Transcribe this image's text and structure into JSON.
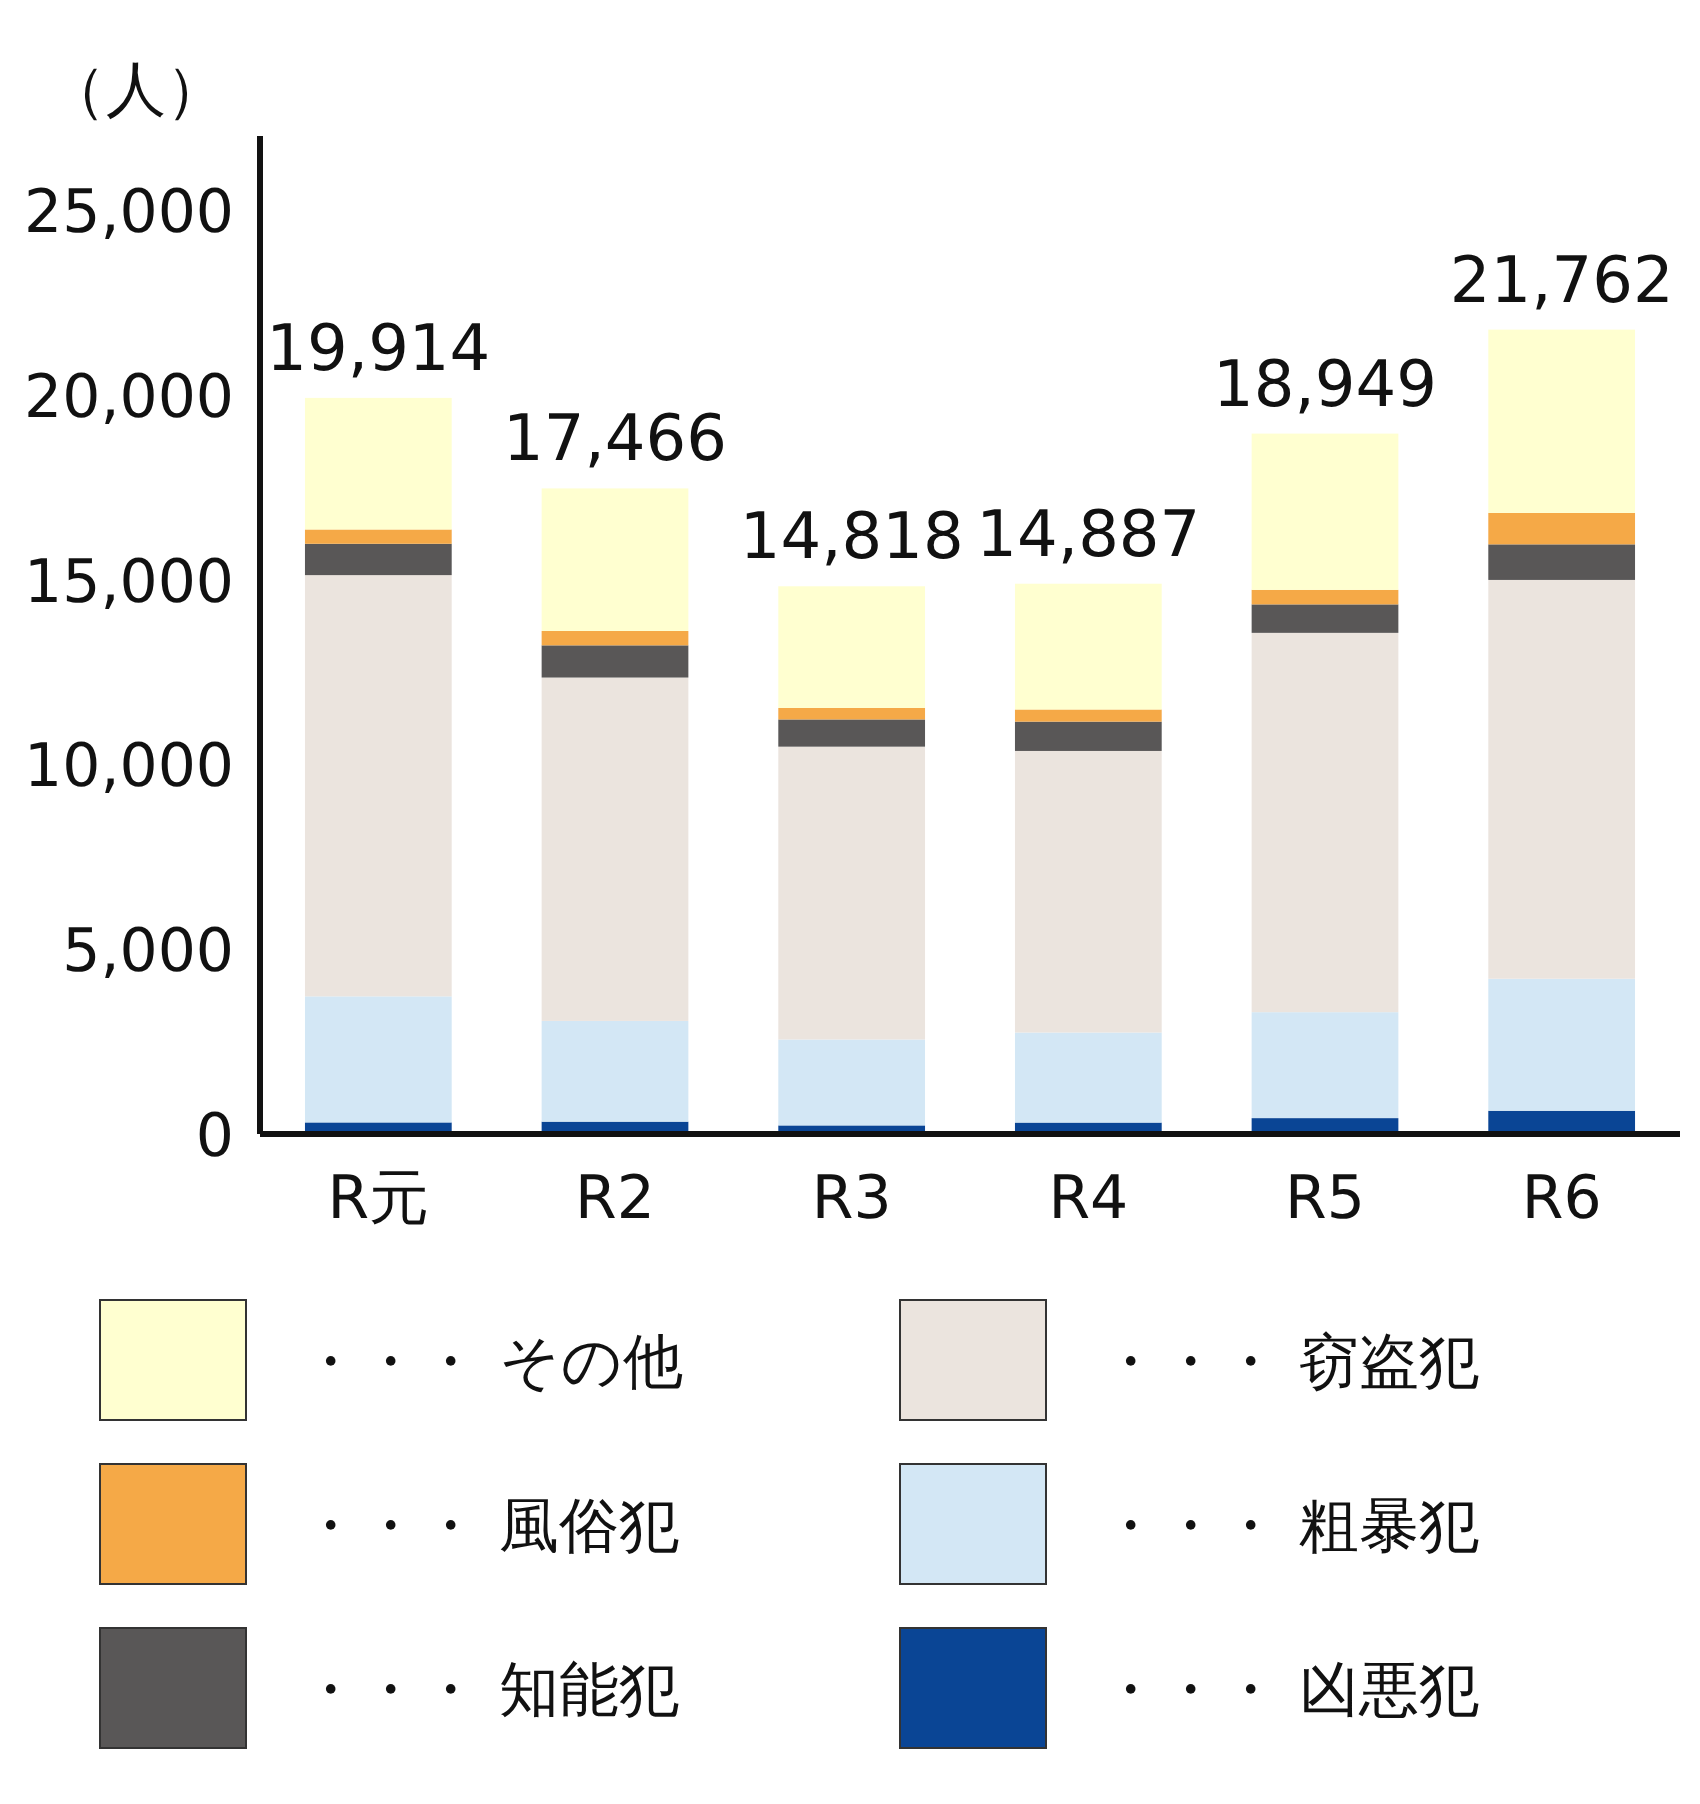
{
  "chart_data": {
    "type": "bar",
    "stacked": true,
    "ylabel": "（人）",
    "categories": [
      "R元",
      "R2",
      "R3",
      "R4",
      "R5",
      "R6"
    ],
    "series": [
      {
        "name": "・・・ 凶悪犯",
        "color": "#0a4595",
        "values": [
          313,
          334,
          232,
          309,
          430,
          629
        ]
      },
      {
        "name": "・・・ 粗暴犯",
        "color": "#d3e7f5",
        "values": [
          3411,
          2726,
          2324,
          2436,
          2866,
          3571
        ]
      },
      {
        "name": "・・・ 窃盗犯",
        "color": "#ebe4de",
        "values": [
          11396,
          9289,
          7923,
          7618,
          10262,
          10790
        ]
      },
      {
        "name": "・・・ 知能犯",
        "color": "#595757",
        "values": [
          848,
          871,
          736,
          793,
          770,
          962
        ]
      },
      {
        "name": "・・・ 風俗犯",
        "color": "#f5a947",
        "values": [
          387,
          389,
          310,
          329,
          394,
          851
        ]
      },
      {
        "name": "・・・ その他",
        "color": "#ffffd0",
        "values": [
          3559,
          3857,
          3293,
          3402,
          4227,
          4959
        ]
      }
    ],
    "totals": [
      "19,914",
      "17,466",
      "14,818",
      "14,887",
      "18,949",
      "21,762"
    ],
    "ylim": [
      0,
      27000
    ],
    "yticks": [
      0,
      {
        "value": 5000,
        "label": "5,000"
      },
      {
        "value": 10000,
        "label": "10,000"
      },
      {
        "value": 15000,
        "label": "15,000"
      },
      {
        "value": 20000,
        "label": "20,000"
      },
      {
        "value": 25000,
        "label": "25,000"
      }
    ],
    "grid": false,
    "legend": "bottom"
  }
}
